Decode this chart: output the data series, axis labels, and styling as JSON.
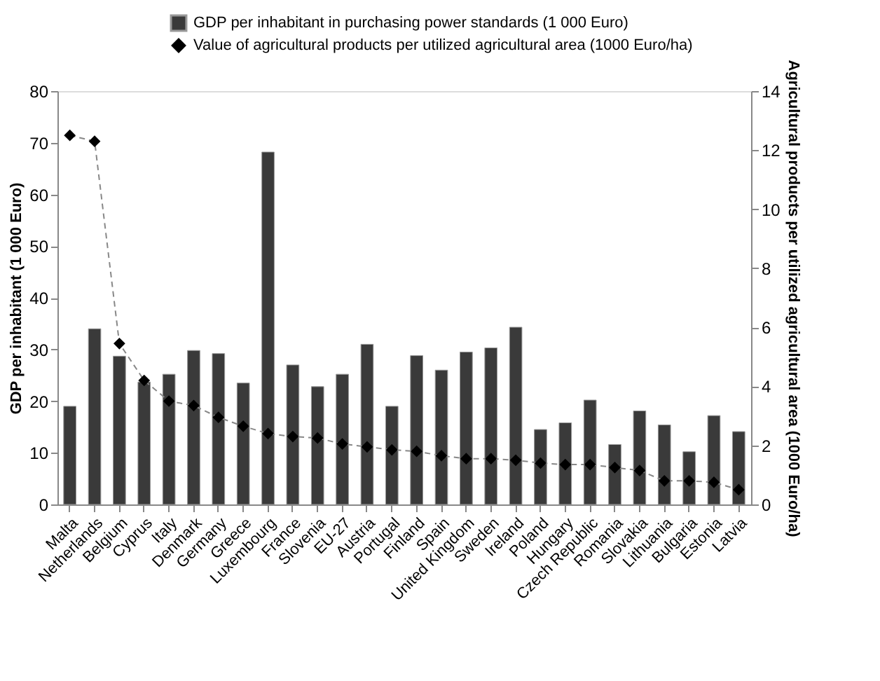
{
  "chart_data": {
    "type": "bar",
    "categories": [
      "Malta",
      "Netherlands",
      "Belgium",
      "Cyprus",
      "Italy",
      "Denmark",
      "Germany",
      "Greece",
      "Luxembourg",
      "France",
      "Slovenia",
      "EU-27",
      "Austria",
      "Portugal",
      "Finland",
      "Spain",
      "United Kingdom",
      "Sweden",
      "Ireland",
      "Poland",
      "Hungary",
      "Czech Republic",
      "Romania",
      "Slovakia",
      "Lithuania",
      "Bulgaria",
      "Estonia",
      "Latvia"
    ],
    "series": [
      {
        "name": "GDP per inhabitant in purchasing power standards  (1 000 Euro)",
        "color": "#3a3a3a",
        "values": [
          19,
          34,
          28.7,
          23.7,
          25.2,
          29.8,
          29.2,
          23.5,
          68.2,
          27,
          22.8,
          25.2,
          31,
          19,
          28.8,
          26,
          29.5,
          30.3,
          34.3,
          14.5,
          15.8,
          20.2,
          11.6,
          18.1,
          15.4,
          10.2,
          17.2,
          14.1
        ]
      },
      {
        "name": "Value of agricultural products per utilized agricultural area (1000 Euro/ha)",
        "type": "line",
        "axis": "y2",
        "color": "#000000",
        "marker": "diamond",
        "line_style": "dashed",
        "values": [
          12.5,
          12.3,
          5.45,
          4.2,
          3.5,
          3.35,
          2.95,
          2.65,
          2.4,
          2.3,
          2.25,
          2.05,
          1.95,
          1.85,
          1.8,
          1.65,
          1.55,
          1.55,
          1.5,
          1.4,
          1.35,
          1.35,
          1.25,
          1.15,
          0.8,
          0.8,
          0.75,
          0.5
        ]
      }
    ],
    "ylabel": "GDP per inhabitant  (1 000 Euro)",
    "y2label": "Agricultural products per utilized agricultural area (1000 Euro/ha)",
    "ylim": [
      0,
      80
    ],
    "yticks": [
      0,
      10,
      20,
      30,
      40,
      50,
      60,
      70,
      80
    ],
    "y2lim": [
      0,
      14
    ],
    "y2ticks": [
      0,
      2,
      4,
      6,
      8,
      10,
      12,
      14
    ],
    "grid": false,
    "legend": "top"
  }
}
